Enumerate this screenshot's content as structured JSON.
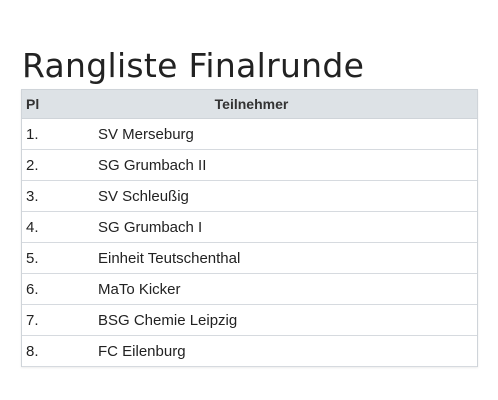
{
  "title": "Rangliste Finalrunde",
  "table": {
    "headers": {
      "rank": "Pl",
      "participant": "Teilnehmer"
    },
    "rows": [
      {
        "rank": "1.",
        "team": "SV Merseburg"
      },
      {
        "rank": "2.",
        "team": "SG Grumbach II"
      },
      {
        "rank": "3.",
        "team": "SV Schleußig"
      },
      {
        "rank": "4.",
        "team": "SG Grumbach I"
      },
      {
        "rank": "5.",
        "team": "Einheit Teutschenthal"
      },
      {
        "rank": "6.",
        "team": "MaTo Kicker"
      },
      {
        "rank": "7.",
        "team": "BSG Chemie Leipzig"
      },
      {
        "rank": "8.",
        "team": "FC Eilenburg"
      }
    ]
  },
  "colors": {
    "header_bg": "#dde2e6",
    "border": "#cfd4d9",
    "text": "#222222"
  }
}
